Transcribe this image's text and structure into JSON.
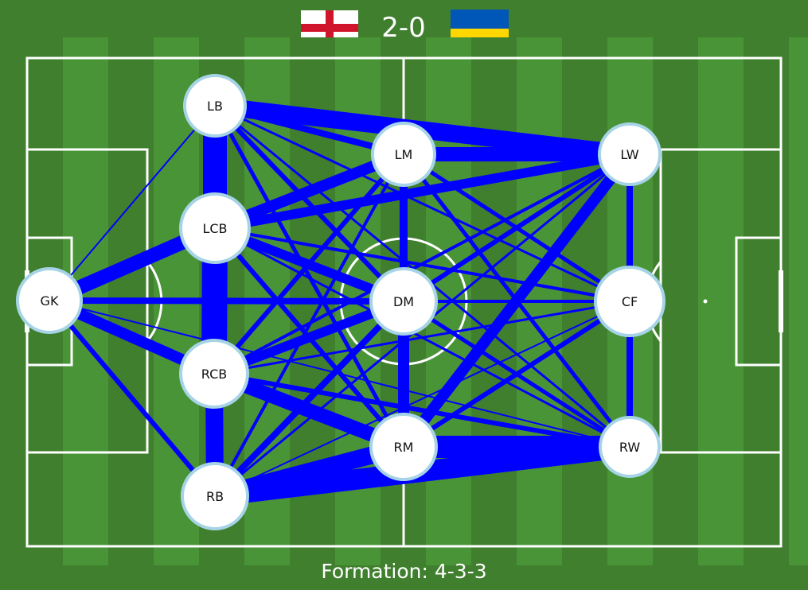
{
  "header": {
    "home_flag": "england-flag-icon",
    "away_flag": "ukraine-flag-icon",
    "score": "2-0"
  },
  "formation_label": "Formation: 4-3-3",
  "colors": {
    "pitch_dark": "#3f7f2d",
    "pitch_light": "#4a9438",
    "pass_lines": "#0000ff",
    "node_fill": "#ffffff",
    "node_stroke": "#a6d4e6"
  },
  "players": [
    {
      "id": "GK",
      "label": "GK",
      "r": 40
    },
    {
      "id": "LB",
      "label": "LB",
      "r": 38
    },
    {
      "id": "LCB",
      "label": "LCB",
      "r": 43
    },
    {
      "id": "RCB",
      "label": "RCB",
      "r": 42
    },
    {
      "id": "RB",
      "label": "RB",
      "r": 41
    },
    {
      "id": "LM",
      "label": "LM",
      "r": 39
    },
    {
      "id": "DM",
      "label": "DM",
      "r": 41
    },
    {
      "id": "RM",
      "label": "RM",
      "r": 41
    },
    {
      "id": "LW",
      "label": "LW",
      "r": 38
    },
    {
      "id": "CF",
      "label": "CF",
      "r": 43
    },
    {
      "id": "RW",
      "label": "RW",
      "r": 37
    }
  ],
  "passes": [
    {
      "from": "LB",
      "to": "LCB",
      "w": 30
    },
    {
      "from": "LCB",
      "to": "RCB",
      "w": 32
    },
    {
      "from": "RCB",
      "to": "RB",
      "w": 22
    },
    {
      "from": "GK",
      "to": "LCB",
      "w": 18
    },
    {
      "from": "GK",
      "to": "RCB",
      "w": 14
    },
    {
      "from": "GK",
      "to": "RB",
      "w": 6
    },
    {
      "from": "GK",
      "to": "LB",
      "w": 2
    },
    {
      "from": "GK",
      "to": "DM",
      "w": 8
    },
    {
      "from": "GK",
      "to": "RW",
      "w": 2
    },
    {
      "from": "GK",
      "to": "LM",
      "w": 2
    },
    {
      "from": "LB",
      "to": "LW",
      "w": 22
    },
    {
      "from": "LB",
      "to": "LM",
      "w": 8
    },
    {
      "from": "LB",
      "to": "DM",
      "w": 6
    },
    {
      "from": "LB",
      "to": "RM",
      "w": 5
    },
    {
      "from": "LB",
      "to": "RB",
      "w": 2
    },
    {
      "from": "LB",
      "to": "CF",
      "w": 3
    },
    {
      "from": "LB",
      "to": "RW",
      "w": 3
    },
    {
      "from": "LCB",
      "to": "LM",
      "w": 14
    },
    {
      "from": "LCB",
      "to": "DM",
      "w": 12
    },
    {
      "from": "LCB",
      "to": "LW",
      "w": 12
    },
    {
      "from": "LCB",
      "to": "RM",
      "w": 6
    },
    {
      "from": "LCB",
      "to": "CF",
      "w": 4
    },
    {
      "from": "LCB",
      "to": "RW",
      "w": 3
    },
    {
      "from": "RCB",
      "to": "DM",
      "w": 12
    },
    {
      "from": "RCB",
      "to": "RM",
      "w": 18
    },
    {
      "from": "RCB",
      "to": "LM",
      "w": 6
    },
    {
      "from": "RCB",
      "to": "RW",
      "w": 6
    },
    {
      "from": "RCB",
      "to": "LW",
      "w": 4
    },
    {
      "from": "RCB",
      "to": "CF",
      "w": 3
    },
    {
      "from": "RB",
      "to": "RM",
      "w": 22
    },
    {
      "from": "RB",
      "to": "RW",
      "w": 26
    },
    {
      "from": "RB",
      "to": "DM",
      "w": 8
    },
    {
      "from": "RB",
      "to": "LM",
      "w": 4
    },
    {
      "from": "RB",
      "to": "LW",
      "w": 3
    },
    {
      "from": "RB",
      "to": "CF",
      "w": 2
    },
    {
      "from": "LM",
      "to": "LW",
      "w": 18
    },
    {
      "from": "LM",
      "to": "DM",
      "w": 10
    },
    {
      "from": "LM",
      "to": "CF",
      "w": 5
    },
    {
      "from": "LM",
      "to": "RW",
      "w": 5
    },
    {
      "from": "LM",
      "to": "RM",
      "w": 3
    },
    {
      "from": "DM",
      "to": "RM",
      "w": 14
    },
    {
      "from": "DM",
      "to": "LW",
      "w": 6
    },
    {
      "from": "DM",
      "to": "CF",
      "w": 4
    },
    {
      "from": "DM",
      "to": "RW",
      "w": 5
    },
    {
      "from": "RM",
      "to": "RW",
      "w": 28
    },
    {
      "from": "RM",
      "to": "LW",
      "w": 14
    },
    {
      "from": "RM",
      "to": "CF",
      "w": 6
    },
    {
      "from": "LW",
      "to": "CF",
      "w": 8
    },
    {
      "from": "CF",
      "to": "RW",
      "w": 8
    }
  ]
}
